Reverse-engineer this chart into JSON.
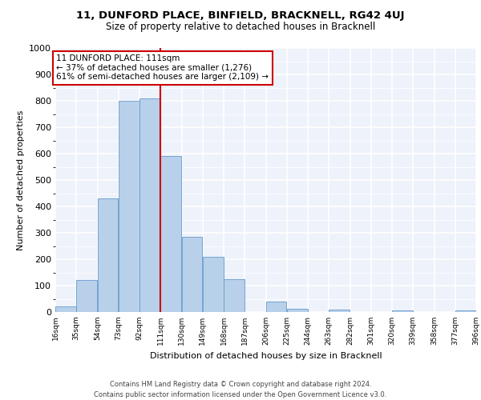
{
  "title": "11, DUNFORD PLACE, BINFIELD, BRACKNELL, RG42 4UJ",
  "subtitle": "Size of property relative to detached houses in Bracknell",
  "xlabel": "Distribution of detached houses by size in Bracknell",
  "ylabel": "Number of detached properties",
  "bar_color": "#b8d0ea",
  "bar_edge_color": "#6699cc",
  "bg_color": "#eef2fa",
  "grid_color": "#ffffff",
  "annotation_text": "11 DUNFORD PLACE: 111sqm\n← 37% of detached houses are smaller (1,276)\n61% of semi-detached houses are larger (2,109) →",
  "vline_x": 111,
  "vline_color": "#cc0000",
  "footer_line1": "Contains HM Land Registry data © Crown copyright and database right 2024.",
  "footer_line2": "Contains public sector information licensed under the Open Government Licence v3.0.",
  "bins_left": [
    16,
    35,
    54,
    73,
    92,
    111,
    130,
    149,
    168,
    187,
    206,
    225,
    244,
    263,
    282,
    301,
    320,
    339,
    358,
    377
  ],
  "bin_width": 19,
  "heights": [
    20,
    120,
    430,
    800,
    810,
    590,
    285,
    210,
    125,
    0,
    38,
    12,
    0,
    8,
    0,
    0,
    7,
    0,
    0,
    7
  ],
  "xtick_labels": [
    "16sqm",
    "35sqm",
    "54sqm",
    "73sqm",
    "92sqm",
    "111sqm",
    "130sqm",
    "149sqm",
    "168sqm",
    "187sqm",
    "206sqm",
    "225sqm",
    "244sqm",
    "263sqm",
    "282sqm",
    "301sqm",
    "320sqm",
    "339sqm",
    "358sqm",
    "377sqm",
    "396sqm"
  ],
  "ylim": [
    0,
    1000
  ],
  "yticks": [
    0,
    100,
    200,
    300,
    400,
    500,
    600,
    700,
    800,
    900,
    1000
  ]
}
